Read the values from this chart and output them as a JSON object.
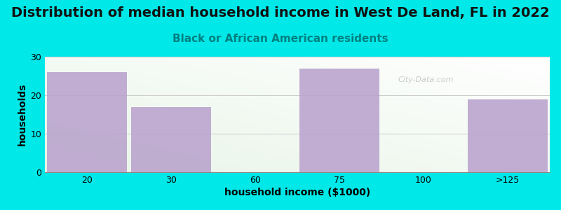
{
  "title": "Distribution of median household income in West De Land, FL in 2022",
  "subtitle": "Black or African American residents",
  "xlabel": "household income ($1000)",
  "ylabel": "households",
  "categories": [
    "20",
    "30",
    "60",
    "75",
    "100",
    ">125"
  ],
  "values": [
    26,
    17,
    0,
    27,
    0,
    19
  ],
  "bar_color": "#b8a0cc",
  "bar_width": 0.95,
  "ylim": [
    0,
    30
  ],
  "yticks": [
    0,
    10,
    20,
    30
  ],
  "background_outer": "#00e8e8",
  "title_fontsize": 14,
  "subtitle_fontsize": 11,
  "axis_label_fontsize": 10,
  "tick_fontsize": 9,
  "watermark": "City-Data.com"
}
